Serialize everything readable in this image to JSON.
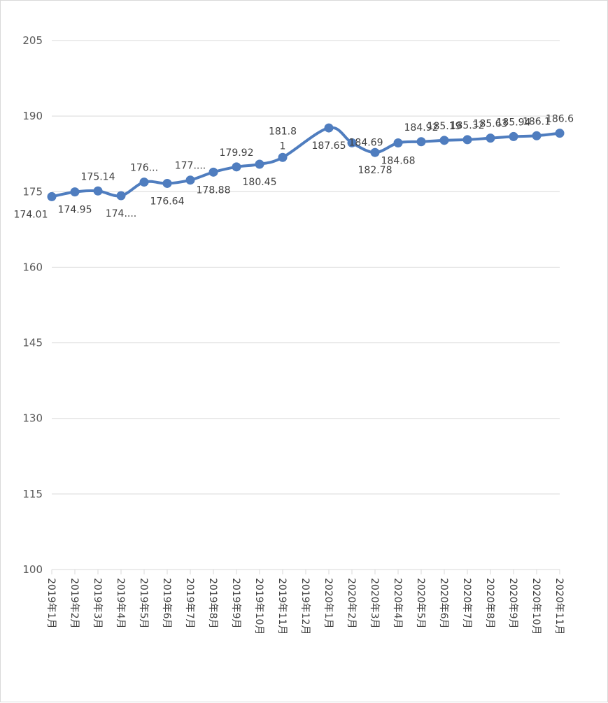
{
  "chart_data": {
    "type": "line",
    "title": "",
    "xlabel": "",
    "ylabel": "",
    "ylim": [
      100,
      205
    ],
    "yticks": [
      100,
      115,
      130,
      145,
      160,
      175,
      190,
      205
    ],
    "grid": true,
    "legend": "none",
    "smooth": true,
    "color": "#4F7DBF",
    "categories": [
      "2019年1月",
      "2019年2月",
      "2019年3月",
      "2019年4月",
      "2019年5月",
      "2019年6月",
      "2019年7月",
      "2019年8月",
      "2019年9月",
      "2019年10月",
      "2019年11月",
      "2019年12月",
      "2020年1月",
      "2020年2月",
      "2020年3月",
      "2020年4月",
      "2020年5月",
      "2020年6月",
      "2020年7月",
      "2020年8月",
      "2020年9月",
      "2020年10月",
      "2020年11月"
    ],
    "series": [
      {
        "values": [
          174.01,
          174.95,
          175.14,
          174.2,
          176.9,
          176.64,
          177.3,
          178.88,
          179.92,
          180.45,
          181.8,
          null,
          187.65,
          184.69,
          182.78,
          184.68,
          184.92,
          185.19,
          185.32,
          185.63,
          185.94,
          186.1,
          186.6
        ],
        "labels": [
          "174.01",
          "174.95",
          "175.14",
          "174....",
          "176...",
          "176.64",
          "177....",
          "178.88",
          "179.92",
          "180.45",
          "181.8\n1",
          "",
          "187.65",
          "184.69",
          "182.78",
          "184.68",
          "184.92",
          "185.19",
          "185.32",
          "185.63",
          "185.94",
          "186.1",
          "186.6"
        ]
      }
    ]
  }
}
